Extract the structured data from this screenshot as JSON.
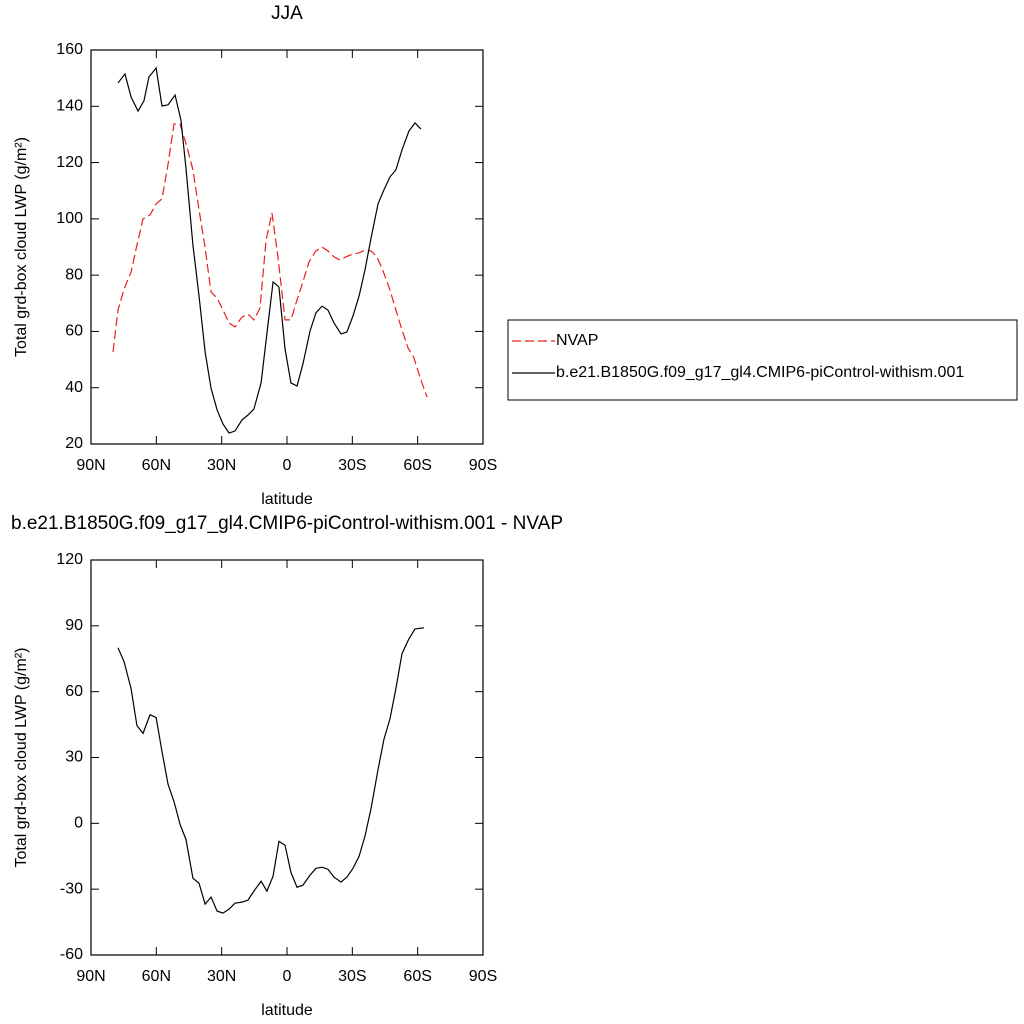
{
  "chart_data": [
    {
      "type": "line",
      "title": "JJA",
      "xlabel": "latitude",
      "ylabel": "Total grd-box cloud LWP (g/m²)",
      "xlim": [
        90,
        -90
      ],
      "xticks": [
        {
          "value": 90,
          "label": "90N"
        },
        {
          "value": 60,
          "label": "60N"
        },
        {
          "value": 30,
          "label": "30N"
        },
        0,
        {
          "value": -30,
          "label": "30S"
        },
        {
          "value": -60,
          "label": "60S"
        },
        {
          "value": -90,
          "label": "90S"
        }
      ],
      "ylim": [
        20,
        160
      ],
      "yticks": [
        20,
        40,
        60,
        80,
        100,
        120,
        140,
        160
      ],
      "legend": "right",
      "series": [
        {
          "name": "NVAP",
          "color": "#e8201c",
          "dash": true,
          "x": [
            79.9,
            77.6,
            74.8,
            71.6,
            68.9,
            66.1,
            62.9,
            60.1,
            57.4,
            54.6,
            51.9,
            49.1,
            45.9,
            43.2,
            40.4,
            37.6,
            34.9,
            32.1,
            29.4,
            26.6,
            23.9,
            20.7,
            17.9,
            15.2,
            12.4,
            9.6,
            6.9,
            4.1,
            0.9,
            -1.8,
            -4.6,
            -7.3,
            -10.1,
            -13.3,
            -16.1,
            -18.8,
            -21.6,
            -24.3,
            -27.1,
            -30.3,
            -33.1,
            -35.8,
            -38.6,
            -41.3,
            -44.1,
            -47.3,
            -50,
            -52.8,
            -55.6,
            -58.3,
            -61.5,
            -64.3
          ],
          "values": [
            52.7,
            67.6,
            75.1,
            81.1,
            90.7,
            100,
            101.4,
            105.3,
            107.1,
            119.5,
            133.7,
            133.7,
            125.5,
            117.4,
            103.2,
            89.7,
            74,
            71.9,
            67.6,
            63,
            61.6,
            65.1,
            66.2,
            64.1,
            68.3,
            92.5,
            102.1,
            86.1,
            64.1,
            64.1,
            71.2,
            77.6,
            84.7,
            88.6,
            90,
            88.6,
            86.5,
            85.4,
            86.5,
            87.5,
            87.9,
            88.9,
            88.6,
            86.5,
            81.5,
            74.7,
            67.6,
            60.5,
            54.1,
            50.6,
            42.7,
            36.7
          ]
        },
        {
          "name": "b.e21.B1850G.f09_g17_gl4.CMIP6-piControl-withism.001",
          "color": "#000000",
          "dash": false,
          "x": [
            77.6,
            74.4,
            71.6,
            68.4,
            65.7,
            63.4,
            60.1,
            57.4,
            54.6,
            51.4,
            48.7,
            46.4,
            43.2,
            40.4,
            37.6,
            34.9,
            32.1,
            29.4,
            26.6,
            23.9,
            20.7,
            17.9,
            15.2,
            11.9,
            9.2,
            6.4,
            3.7,
            0.9,
            -1.8,
            -4.6,
            -7.3,
            -10.6,
            -13.3,
            -16.1,
            -18.8,
            -21.6,
            -24.8,
            -27.5,
            -30.3,
            -33.1,
            -35.8,
            -38.6,
            -41.8,
            -44.5,
            -47.3,
            -50,
            -52.8,
            -56,
            -58.8,
            -61.5
          ],
          "values": [
            148.3,
            151.5,
            143.3,
            138.3,
            141.9,
            150.4,
            153.6,
            140.1,
            140.5,
            144,
            135.1,
            118.1,
            90.7,
            72.6,
            52.7,
            39.9,
            32.1,
            27.1,
            23.9,
            24.6,
            28.5,
            30.3,
            32.4,
            41.7,
            59.4,
            77.6,
            75.8,
            53.8,
            41.7,
            40.6,
            48.4,
            60.2,
            66.6,
            69,
            67.6,
            63,
            59.1,
            59.8,
            65.5,
            72.6,
            81.8,
            93.2,
            105.3,
            110.3,
            114.9,
            117.4,
            124.5,
            131.2,
            134.1,
            131.9
          ]
        }
      ]
    },
    {
      "type": "line",
      "title": "b.e21.B1850G.f09_g17_gl4.CMIP6-piControl-withism.001 - NVAP",
      "xlabel": "latitude",
      "ylabel": "Total grd-box cloud LWP (g/m²)",
      "xlim": [
        90,
        -90
      ],
      "xticks": [
        {
          "value": 90,
          "label": "90N"
        },
        {
          "value": 60,
          "label": "60N"
        },
        {
          "value": 30,
          "label": "30N"
        },
        0,
        {
          "value": -30,
          "label": "30S"
        },
        {
          "value": -60,
          "label": "60S"
        },
        {
          "value": -90,
          "label": "90S"
        }
      ],
      "ylim": [
        -60,
        120
      ],
      "yticks": [
        -60,
        -30,
        0,
        30,
        60,
        90,
        120
      ],
      "series": [
        {
          "color": "#000000",
          "dash": false,
          "x": [
            77.6,
            74.8,
            71.6,
            68.9,
            66.1,
            62.9,
            60.1,
            57.4,
            54.6,
            51.9,
            49.1,
            46.4,
            43.2,
            40.4,
            37.6,
            34.9,
            32.1,
            29.4,
            26.6,
            23.9,
            20.7,
            17.9,
            15.2,
            11.9,
            9.2,
            6.4,
            3.7,
            0.9,
            -1.8,
            -4.6,
            -7.3,
            -10.6,
            -13.3,
            -16.1,
            -18.8,
            -21.6,
            -24.8,
            -27.5,
            -30.3,
            -33.1,
            -35.8,
            -38.6,
            -41.8,
            -44.5,
            -47.3,
            -50,
            -52.8,
            -56,
            -58.8,
            -62.9
          ],
          "values": [
            80,
            73.6,
            61.4,
            44.5,
            41,
            49.5,
            48.2,
            32.7,
            17.7,
            10,
            -0.5,
            -7.3,
            -25,
            -27.3,
            -36.8,
            -33.6,
            -40,
            -40.9,
            -39.1,
            -36.4,
            -35.9,
            -35,
            -30.9,
            -26.4,
            -30.9,
            -24.1,
            -8.2,
            -10,
            -22.3,
            -29.1,
            -28.2,
            -23.6,
            -20.5,
            -20,
            -20.9,
            -24.5,
            -26.8,
            -24.5,
            -20.5,
            -15,
            -5.9,
            6.8,
            24.5,
            38.2,
            47.7,
            61.4,
            77.3,
            84.1,
            88.6,
            89.1
          ]
        }
      ]
    }
  ]
}
